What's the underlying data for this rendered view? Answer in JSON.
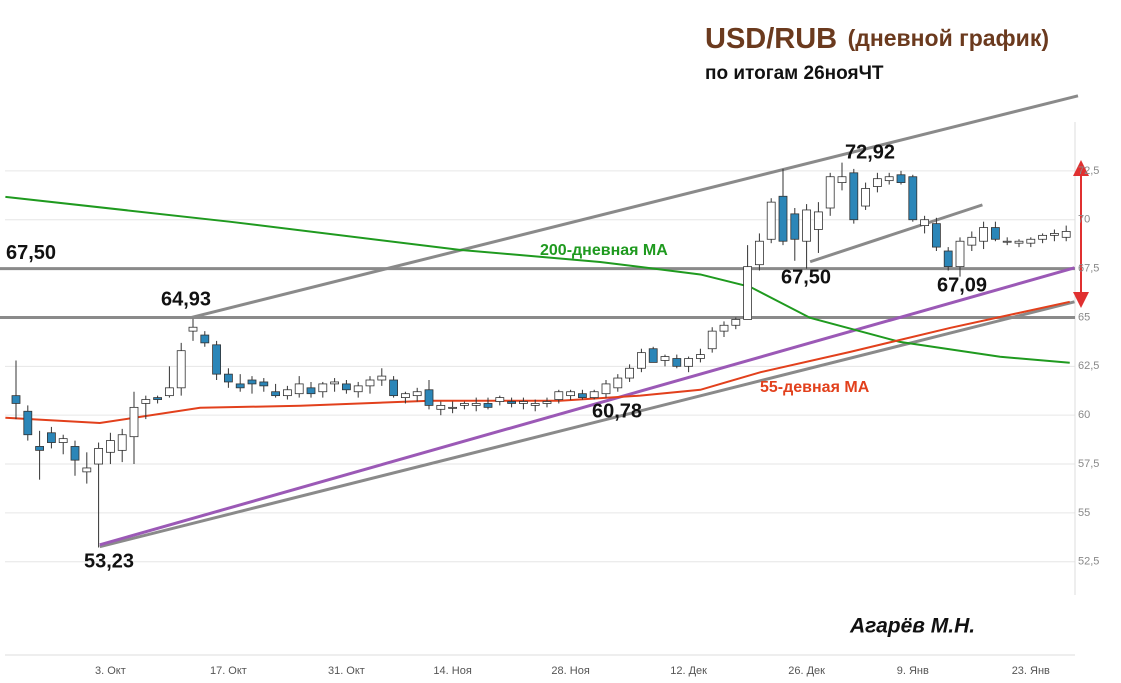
{
  "chart_data": {
    "type": "candlestick",
    "title": "USD/RUB",
    "title_note": "(дневной график)",
    "subtitle": "по итогам 26нояЧТ",
    "author": "Агарёв М.Н.",
    "categories": [
      null,
      null,
      null,
      null,
      null,
      null,
      null,
      null,
      "3. Окт",
      null,
      null,
      null,
      null,
      null,
      null,
      null,
      null,
      null,
      "17. Окт",
      null,
      null,
      null,
      null,
      null,
      null,
      null,
      null,
      null,
      "31. Окт",
      null,
      null,
      null,
      null,
      null,
      null,
      null,
      null,
      "14. Ноя",
      null,
      null,
      null,
      null,
      null,
      null,
      null,
      null,
      null,
      "28. Ноя",
      null,
      null,
      null,
      null,
      null,
      null,
      null,
      null,
      null,
      "12. Дек",
      null,
      null,
      null,
      null,
      null,
      null,
      null,
      null,
      null,
      "26. Дек",
      null,
      null,
      null,
      null,
      null,
      null,
      null,
      null,
      "9. Янв",
      null,
      null,
      null,
      null,
      null,
      null,
      null,
      null,
      null,
      "23. Янв",
      null,
      null,
      null
    ],
    "open": [
      61.0,
      60.2,
      58.4,
      59.1,
      58.6,
      58.4,
      57.1,
      57.5,
      58.1,
      58.2,
      58.9,
      60.6,
      60.9,
      61.0,
      61.4,
      64.3,
      64.1,
      63.6,
      62.1,
      61.6,
      61.8,
      61.7,
      61.2,
      61.0,
      61.1,
      61.4,
      61.2,
      61.6,
      61.6,
      61.2,
      61.5,
      61.8,
      61.8,
      60.9,
      61.0,
      61.3,
      60.3,
      60.4,
      60.5,
      60.5,
      60.6,
      60.7,
      60.7,
      60.6,
      60.5,
      60.6,
      60.8,
      61.0,
      61.1,
      60.9,
      61.1,
      61.4,
      61.9,
      62.4,
      63.4,
      62.8,
      62.9,
      62.5,
      62.9,
      63.4,
      64.3,
      64.6,
      64.9,
      67.7,
      69.0,
      71.2,
      70.3,
      68.9,
      69.5,
      70.6,
      71.9,
      72.4,
      70.7,
      71.7,
      72.0,
      72.3,
      72.2,
      69.7,
      69.8,
      68.4,
      67.6,
      68.7,
      68.9,
      69.6,
      68.9,
      68.8,
      68.8,
      69.0,
      69.2,
      69.1
    ],
    "high": [
      62.8,
      60.5,
      59.2,
      59.4,
      59.0,
      58.7,
      58.1,
      58.6,
      59.1,
      59.3,
      61.2,
      61.0,
      61.0,
      62.5,
      63.7,
      64.93,
      64.3,
      63.8,
      62.4,
      62.1,
      62.0,
      61.9,
      61.6,
      61.5,
      62.0,
      61.7,
      61.7,
      61.9,
      61.8,
      61.7,
      62.0,
      62.4,
      62.0,
      61.2,
      61.4,
      61.8,
      60.7,
      60.7,
      60.7,
      60.9,
      60.9,
      61.0,
      60.9,
      60.9,
      60.8,
      60.9,
      61.3,
      61.3,
      61.3,
      61.3,
      61.8,
      62.1,
      62.6,
      63.4,
      63.5,
      63.1,
      63.1,
      63.0,
      63.4,
      64.5,
      64.8,
      65.0,
      68.7,
      69.3,
      71.1,
      72.6,
      70.6,
      70.8,
      70.9,
      72.4,
      72.92,
      72.6,
      71.9,
      72.4,
      72.4,
      72.5,
      72.3,
      70.2,
      70.1,
      68.6,
      69.1,
      69.4,
      69.9,
      69.9,
      69.1,
      69.0,
      69.1,
      69.3,
      69.5,
      69.7
    ],
    "low": [
      59.8,
      58.7,
      56.7,
      58.3,
      58.0,
      56.9,
      56.5,
      53.23,
      57.5,
      57.6,
      57.5,
      59.8,
      60.6,
      60.9,
      61.0,
      63.8,
      63.5,
      61.8,
      61.4,
      61.2,
      61.1,
      61.2,
      60.9,
      60.8,
      60.9,
      60.9,
      60.9,
      61.2,
      61.1,
      60.9,
      61.1,
      61.5,
      60.9,
      60.6,
      60.7,
      60.3,
      60.0,
      60.1,
      60.3,
      60.2,
      60.3,
      60.5,
      60.4,
      60.3,
      60.2,
      60.4,
      60.6,
      60.78,
      60.8,
      60.8,
      60.9,
      61.2,
      61.7,
      62.2,
      62.7,
      62.5,
      62.4,
      62.2,
      62.7,
      63.2,
      64.0,
      64.4,
      64.9,
      67.4,
      68.8,
      68.7,
      67.9,
      67.5,
      68.3,
      70.2,
      71.5,
      69.8,
      70.5,
      71.4,
      71.8,
      71.8,
      69.9,
      69.3,
      68.4,
      67.4,
      67.09,
      68.4,
      68.5,
      68.9,
      68.7,
      68.6,
      68.6,
      68.8,
      68.9,
      68.9
    ],
    "close": [
      60.6,
      59.0,
      58.2,
      58.6,
      58.8,
      57.7,
      57.3,
      58.3,
      58.7,
      59.0,
      60.4,
      60.8,
      60.8,
      61.4,
      63.3,
      64.5,
      63.7,
      62.1,
      61.7,
      61.4,
      61.6,
      61.5,
      61.0,
      61.3,
      61.6,
      61.1,
      61.6,
      61.7,
      61.3,
      61.5,
      61.8,
      62.0,
      61.0,
      61.1,
      61.2,
      60.5,
      60.5,
      60.4,
      60.6,
      60.6,
      60.4,
      60.9,
      60.6,
      60.7,
      60.6,
      60.7,
      61.2,
      61.2,
      60.9,
      61.2,
      61.6,
      61.9,
      62.4,
      63.2,
      62.7,
      63.0,
      62.5,
      62.9,
      63.1,
      64.3,
      64.6,
      64.9,
      67.6,
      68.9,
      70.9,
      68.9,
      69.0,
      70.5,
      70.4,
      72.2,
      72.2,
      70.0,
      71.6,
      72.1,
      72.2,
      71.9,
      70.0,
      70.0,
      68.6,
      67.6,
      68.9,
      69.1,
      69.6,
      69.0,
      68.9,
      68.9,
      69.0,
      69.2,
      69.3,
      69.4
    ],
    "up_color": "#ffffff",
    "down_color": "#2b86b8",
    "ylim": [
      50.8,
      75
    ],
    "yticks": [
      {
        "value": 52.5,
        "label": "52,5"
      },
      55,
      {
        "value": 57.5,
        "label": "57,5"
      },
      60,
      {
        "value": 62.5,
        "label": "62,5"
      },
      65,
      {
        "value": 67.5,
        "label": "67,5"
      },
      70,
      {
        "value": 72.5,
        "label": "72,5"
      }
    ],
    "grid": true,
    "moving_averages": [
      {
        "name": "200-дневная MA",
        "color": "#1f9a1f",
        "x": [
          -0.9,
          18.1,
          37.6,
          49.5,
          58,
          62.2,
          67.3,
          74.9,
          83.4,
          89.3
        ],
        "values": [
          71.17,
          69.9,
          68.46,
          67.84,
          67.2,
          66.57,
          64.98,
          63.75,
          62.99,
          62.68
        ]
      },
      {
        "name": "55-девная MA",
        "color": "#e2401c",
        "x": [
          -0.9,
          7.1,
          15.6,
          24.1,
          35.1,
          46.1,
          52.9,
          58,
          63.1,
          70.7,
          79.2,
          89.3
        ],
        "values": [
          59.87,
          59.6,
          60.38,
          60.48,
          60.74,
          60.74,
          61.0,
          61.3,
          62.2,
          63.24,
          64.47,
          65.8
        ]
      }
    ],
    "levels": [
      {
        "value": 67.5,
        "label": "67,50"
      },
      65
    ],
    "level_color": "#8a8a8a",
    "trendlines": [
      {
        "color": "#8a8a8a",
        "x": [
          14.75,
          90
        ],
        "values": [
          64.98,
          76.34
        ]
      },
      {
        "color": "#8a8a8a",
        "x": [
          7.1,
          89.7
        ],
        "values": [
          53.27,
          65.8
        ]
      },
      {
        "color": "#9b59b6",
        "x": [
          7.1,
          89.7
        ],
        "values": [
          53.37,
          67.54
        ]
      },
      {
        "color": "#8a8a8a",
        "x": [
          67.3,
          81.9
        ],
        "values": [
          67.85,
          70.76
        ]
      }
    ],
    "annotations": [
      {
        "value": 72.92,
        "label": "72,92"
      },
      {
        "value": 67.5,
        "label": "67,50"
      },
      {
        "value": 67.09,
        "label": "67,09"
      },
      {
        "value": 60.78,
        "label": "60,78"
      },
      {
        "value": 64.93,
        "label": "64,93"
      },
      {
        "value": 53.23,
        "label": "53,23"
      }
    ]
  }
}
